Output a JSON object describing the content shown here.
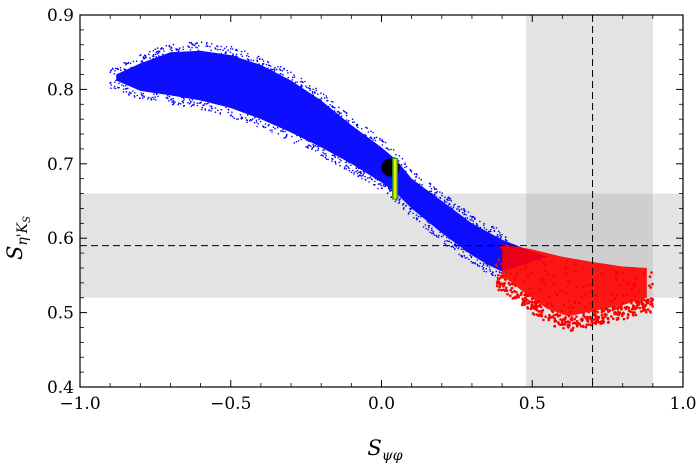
{
  "chart_data": {
    "type": "scatter",
    "xlabel": "S",
    "xlabel_sub": "ψφ",
    "ylabel": "S",
    "ylabel_sub": "η'K",
    "ylabel_subsub": "S",
    "xlim": [
      -1.0,
      1.0
    ],
    "ylim": [
      0.4,
      0.9
    ],
    "x_ticks": [
      -1.0,
      -0.5,
      0.0,
      0.5,
      1.0
    ],
    "x_tick_labels": [
      "−1.0",
      "−0.5",
      "0.0",
      "0.5",
      "1.0"
    ],
    "y_ticks": [
      0.4,
      0.5,
      0.6,
      0.7,
      0.8,
      0.9
    ],
    "y_tick_labels": [
      "0.4",
      "0.5",
      "0.6",
      "0.7",
      "0.8",
      "0.9"
    ],
    "bands": [
      {
        "axis": "x",
        "from": 0.48,
        "to": 0.9,
        "color": "#e3e3e3"
      },
      {
        "axis": "y",
        "from": 0.52,
        "to": 0.66,
        "color": "#e3e3e3"
      }
    ],
    "reference_lines": [
      {
        "axis": "x",
        "value": 0.7,
        "style": "dashed"
      },
      {
        "axis": "y",
        "value": 0.59,
        "style": "dashed"
      }
    ],
    "series": [
      {
        "color": "#0000ff",
        "kind": "dense-region",
        "upper_edge": [
          [
            -0.88,
            0.82
          ],
          [
            -0.8,
            0.835
          ],
          [
            -0.7,
            0.85
          ],
          [
            -0.6,
            0.852
          ],
          [
            -0.5,
            0.846
          ],
          [
            -0.4,
            0.833
          ],
          [
            -0.3,
            0.812
          ],
          [
            -0.2,
            0.785
          ],
          [
            -0.1,
            0.752
          ],
          [
            0.0,
            0.722
          ],
          [
            0.05,
            0.705
          ],
          [
            0.1,
            0.68
          ],
          [
            0.2,
            0.65
          ],
          [
            0.3,
            0.62
          ],
          [
            0.4,
            0.598
          ],
          [
            0.5,
            0.582
          ],
          [
            0.55,
            0.575
          ]
        ],
        "lower_edge": [
          [
            -0.88,
            0.812
          ],
          [
            -0.8,
            0.798
          ],
          [
            -0.7,
            0.792
          ],
          [
            -0.6,
            0.785
          ],
          [
            -0.5,
            0.775
          ],
          [
            -0.4,
            0.76
          ],
          [
            -0.3,
            0.742
          ],
          [
            -0.2,
            0.722
          ],
          [
            -0.1,
            0.7
          ],
          [
            0.0,
            0.675
          ],
          [
            0.05,
            0.66
          ],
          [
            0.1,
            0.64
          ],
          [
            0.2,
            0.607
          ],
          [
            0.3,
            0.577
          ],
          [
            0.35,
            0.565
          ],
          [
            0.4,
            0.555
          ]
        ]
      },
      {
        "color": "#ff0000",
        "kind": "dense-region",
        "upper_edge": [
          [
            0.4,
            0.592
          ],
          [
            0.5,
            0.585
          ],
          [
            0.6,
            0.575
          ],
          [
            0.7,
            0.568
          ],
          [
            0.8,
            0.562
          ],
          [
            0.88,
            0.56
          ]
        ],
        "lower_edge": [
          [
            0.4,
            0.55
          ],
          [
            0.48,
            0.525
          ],
          [
            0.55,
            0.505
          ],
          [
            0.62,
            0.495
          ],
          [
            0.7,
            0.502
          ],
          [
            0.8,
            0.51
          ],
          [
            0.88,
            0.52
          ]
        ]
      }
    ],
    "markers": [
      {
        "shape": "circle",
        "x": 0.03,
        "y": 0.695,
        "color": "#000000"
      },
      {
        "shape": "vertical-bar",
        "x": 0.045,
        "y_from": 0.652,
        "y_to": 0.708,
        "color": "#e6f000",
        "outline": "#2a8c2a"
      }
    ]
  }
}
